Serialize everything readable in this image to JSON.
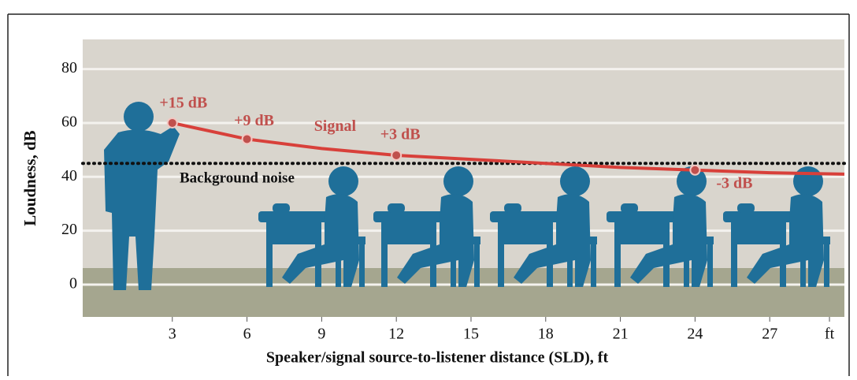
{
  "chart_data": {
    "type": "line",
    "xlabel": "Speaker/signal source-to-listener distance (SLD), ft",
    "ylabel": "Loudness, dB",
    "xlim": [
      -0.6,
      30
    ],
    "ylim": [
      -12,
      91
    ],
    "xticks": [
      3,
      6,
      9,
      12,
      15,
      18,
      21,
      24,
      27,
      {
        "value": 29.4,
        "label": "ft"
      }
    ],
    "yticks": [
      0,
      20,
      40,
      60,
      80
    ],
    "grid": true,
    "x": [
      3,
      6,
      9,
      12,
      15,
      18,
      21,
      24,
      27,
      30
    ],
    "series": [
      {
        "name": "Signal",
        "color": "#d8403a",
        "values": [
          60,
          54,
          50.5,
          48,
          46.5,
          45,
          43.5,
          42.5,
          41.5,
          41
        ]
      }
    ],
    "reference_line": {
      "name": "Background noise",
      "value": 45,
      "color": "#111111"
    },
    "markers": {
      "x": [
        3,
        6,
        12,
        24
      ],
      "values": [
        60,
        54,
        48,
        42.5
      ],
      "labels": [
        "+15 dB",
        "+9 dB",
        "+3 dB",
        "-3 dB"
      ],
      "color": "#c0504d"
    }
  }
}
